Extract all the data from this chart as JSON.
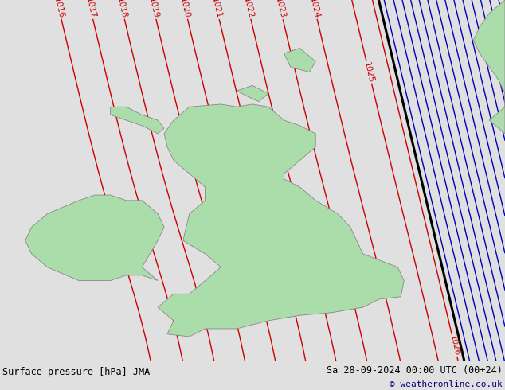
{
  "title_left": "Surface pressure [hPa] JMA",
  "title_right": "Sa 28-09-2024 00:00 UTC (00+24)",
  "copyright": "© weatheronline.co.uk",
  "background_color": "#e0e0e0",
  "land_color": "#aaddaa",
  "border_color": "#888888",
  "red_contour_color": "#cc0000",
  "blue_contour_color": "#0000bb",
  "black_contour_color": "#000000",
  "footer_bg": "#c8c8c8",
  "map_xlim": [
    -11.0,
    5.0
  ],
  "map_ylim": [
    49.0,
    62.5
  ],
  "figsize": [
    6.34,
    4.9
  ],
  "dpi": 100,
  "label_fontsize": 7.5
}
